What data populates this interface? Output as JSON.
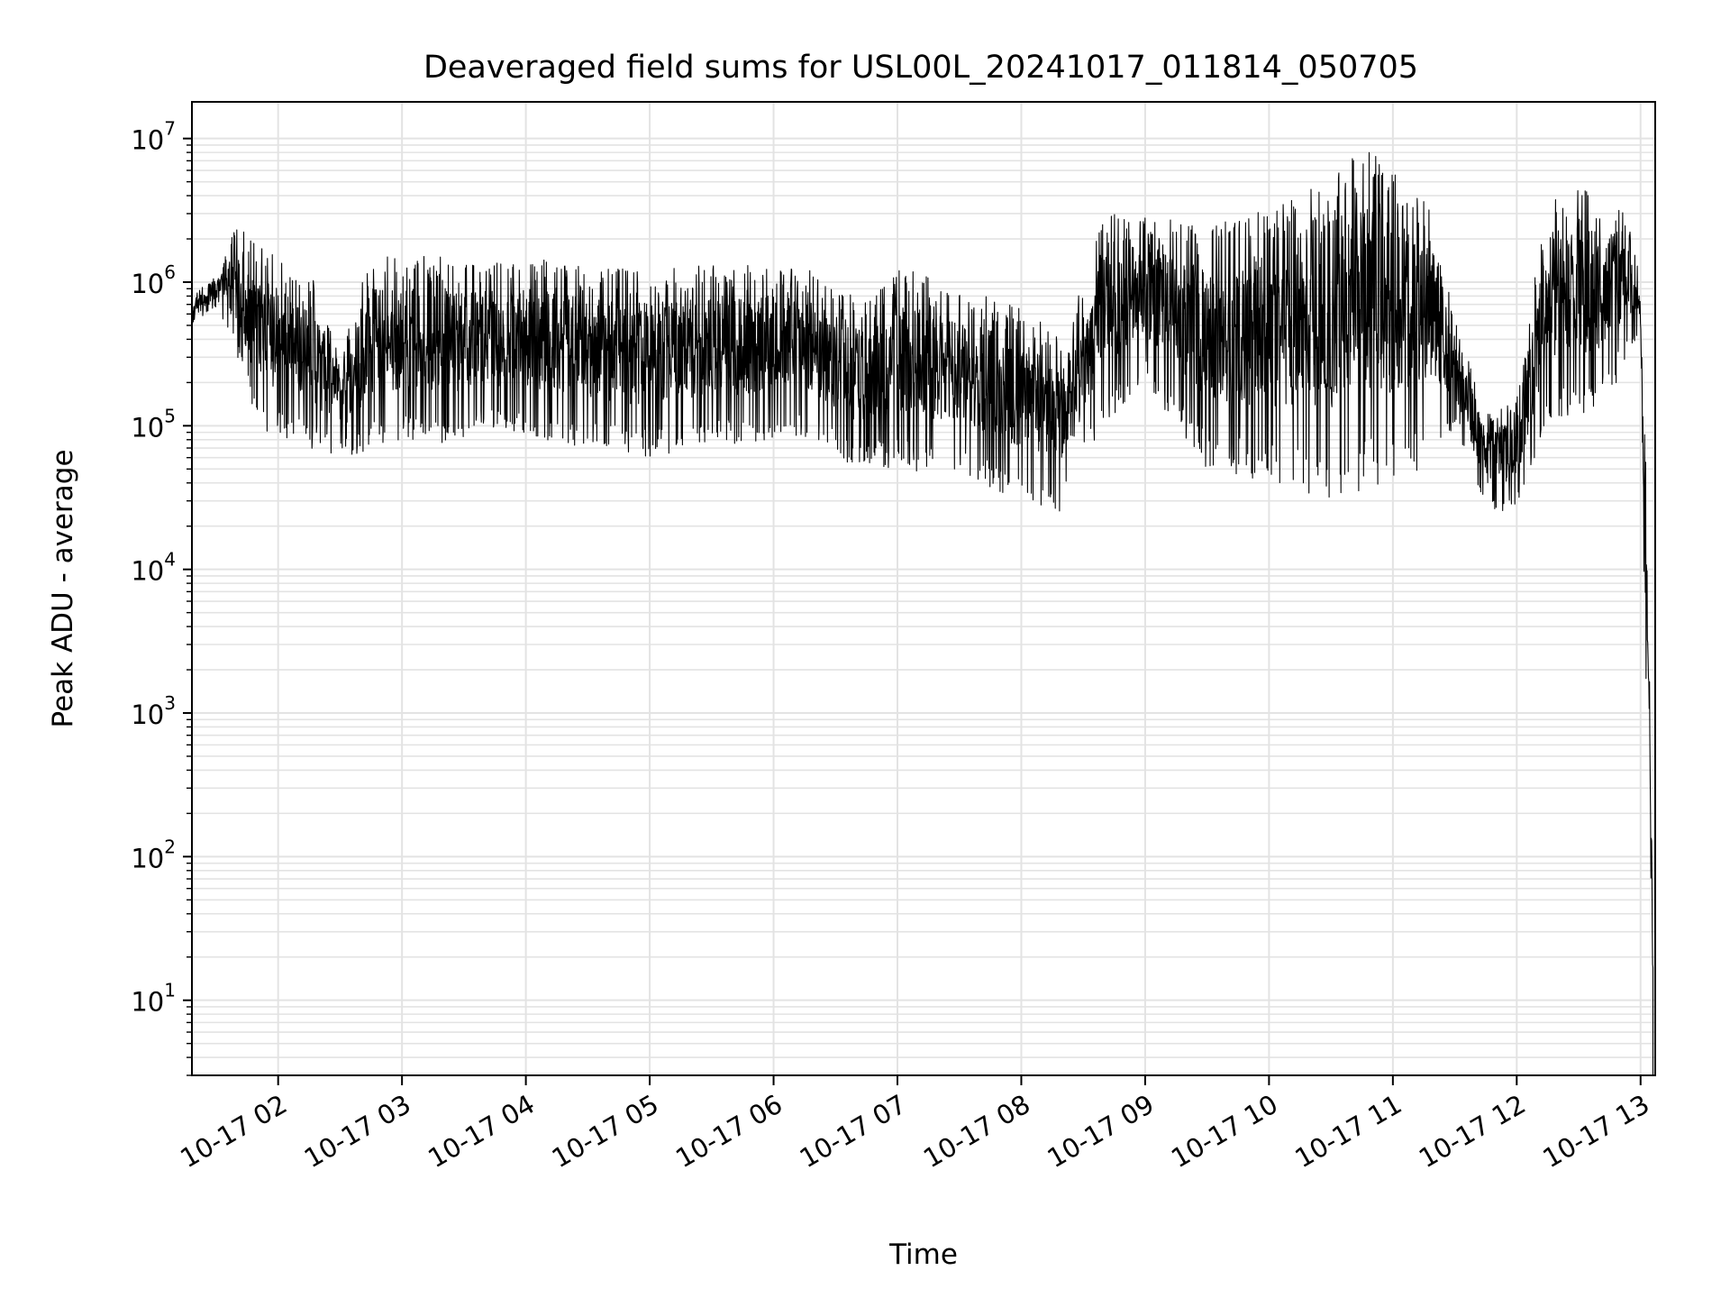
{
  "chart_data": {
    "type": "line",
    "title": "Deaveraged field sums for USL00L_20241017_011814_050705",
    "xlabel": "Time",
    "ylabel": "Peak ADU - average",
    "y_scale": "log",
    "ylim": [
      3,
      18000000
    ],
    "xlim": [
      "2024-10-17 01:18:14",
      "2024-10-17 13:07:05"
    ],
    "grid": true,
    "x_ticks": [
      "10-17 02",
      "10-17 03",
      "10-17 04",
      "10-17 05",
      "10-17 06",
      "10-17 07",
      "10-17 08",
      "10-17 09",
      "10-17 10",
      "10-17 11",
      "10-17 12",
      "10-17 13"
    ],
    "y_ticks": [
      {
        "base": "10",
        "exp": "1"
      },
      {
        "base": "10",
        "exp": "2"
      },
      {
        "base": "10",
        "exp": "3"
      },
      {
        "base": "10",
        "exp": "4"
      },
      {
        "base": "10",
        "exp": "5"
      },
      {
        "base": "10",
        "exp": "6"
      },
      {
        "base": "10",
        "exp": "7"
      }
    ],
    "series": [
      {
        "color": "#000000",
        "envelope": [
          {
            "t": "2024-10-17 01:18",
            "low": 500000,
            "high": 800000
          },
          {
            "t": "2024-10-17 01:30",
            "low": 650000,
            "high": 1100000
          },
          {
            "t": "2024-10-17 01:40",
            "low": 300000,
            "high": 2500000
          },
          {
            "t": "2024-10-17 01:50",
            "low": 90000,
            "high": 1800000
          },
          {
            "t": "2024-10-17 02:00",
            "low": 80000,
            "high": 1500000
          },
          {
            "t": "2024-10-17 02:15",
            "low": 70000,
            "high": 1300000
          },
          {
            "t": "2024-10-17 02:30",
            "low": 60000,
            "high": 300000
          },
          {
            "t": "2024-10-17 02:45",
            "low": 65000,
            "high": 1600000
          },
          {
            "t": "2024-10-17 03:00",
            "low": 80000,
            "high": 1500000
          },
          {
            "t": "2024-10-17 03:20",
            "low": 70000,
            "high": 1600000
          },
          {
            "t": "2024-10-17 03:40",
            "low": 90000,
            "high": 1400000
          },
          {
            "t": "2024-10-17 04:00",
            "low": 80000,
            "high": 1500000
          },
          {
            "t": "2024-10-17 04:30",
            "low": 70000,
            "high": 1300000
          },
          {
            "t": "2024-10-17 05:00",
            "low": 60000,
            "high": 1200000
          },
          {
            "t": "2024-10-17 05:30",
            "low": 70000,
            "high": 1400000
          },
          {
            "t": "2024-10-17 06:00",
            "low": 80000,
            "high": 1300000
          },
          {
            "t": "2024-10-17 06:20",
            "low": 80000,
            "high": 1200000
          },
          {
            "t": "2024-10-17 06:40",
            "low": 50000,
            "high": 800000
          },
          {
            "t": "2024-10-17 07:00",
            "low": 50000,
            "high": 1300000
          },
          {
            "t": "2024-10-17 07:30",
            "low": 45000,
            "high": 900000
          },
          {
            "t": "2024-10-17 08:00",
            "low": 30000,
            "high": 700000
          },
          {
            "t": "2024-10-17 08:20",
            "low": 25000,
            "high": 400000
          },
          {
            "t": "2024-10-17 08:40",
            "low": 100000,
            "high": 3000000
          },
          {
            "t": "2024-10-17 09:00",
            "low": 200000,
            "high": 3000000
          },
          {
            "t": "2024-10-17 09:30",
            "low": 50000,
            "high": 2500000
          },
          {
            "t": "2024-10-17 10:00",
            "low": 40000,
            "high": 3500000
          },
          {
            "t": "2024-10-17 10:30",
            "low": 30000,
            "high": 5000000
          },
          {
            "t": "2024-10-17 10:45",
            "low": 35000,
            "high": 9000000
          },
          {
            "t": "2024-10-17 11:00",
            "low": 40000,
            "high": 6000000
          },
          {
            "t": "2024-10-17 11:15",
            "low": 50000,
            "high": 5000000
          },
          {
            "t": "2024-10-17 11:30",
            "low": 100000,
            "high": 600000
          },
          {
            "t": "2024-10-17 11:45",
            "low": 25000,
            "high": 120000
          },
          {
            "t": "2024-10-17 12:00",
            "low": 25000,
            "high": 150000
          },
          {
            "t": "2024-10-17 12:15",
            "low": 100000,
            "high": 4500000
          },
          {
            "t": "2024-10-17 12:40",
            "low": 120000,
            "high": 4500000
          },
          {
            "t": "2024-10-17 12:55",
            "low": 300000,
            "high": 4000000
          },
          {
            "t": "2024-10-17 13:00",
            "low": 500000,
            "high": 800000
          },
          {
            "t": "2024-10-17 13:02",
            "low": 2000,
            "high": 200000
          },
          {
            "t": "2024-10-17 13:04",
            "low": 1000,
            "high": 3000
          },
          {
            "t": "2024-10-17 13:06",
            "low": 3,
            "high": 100
          }
        ]
      }
    ]
  }
}
